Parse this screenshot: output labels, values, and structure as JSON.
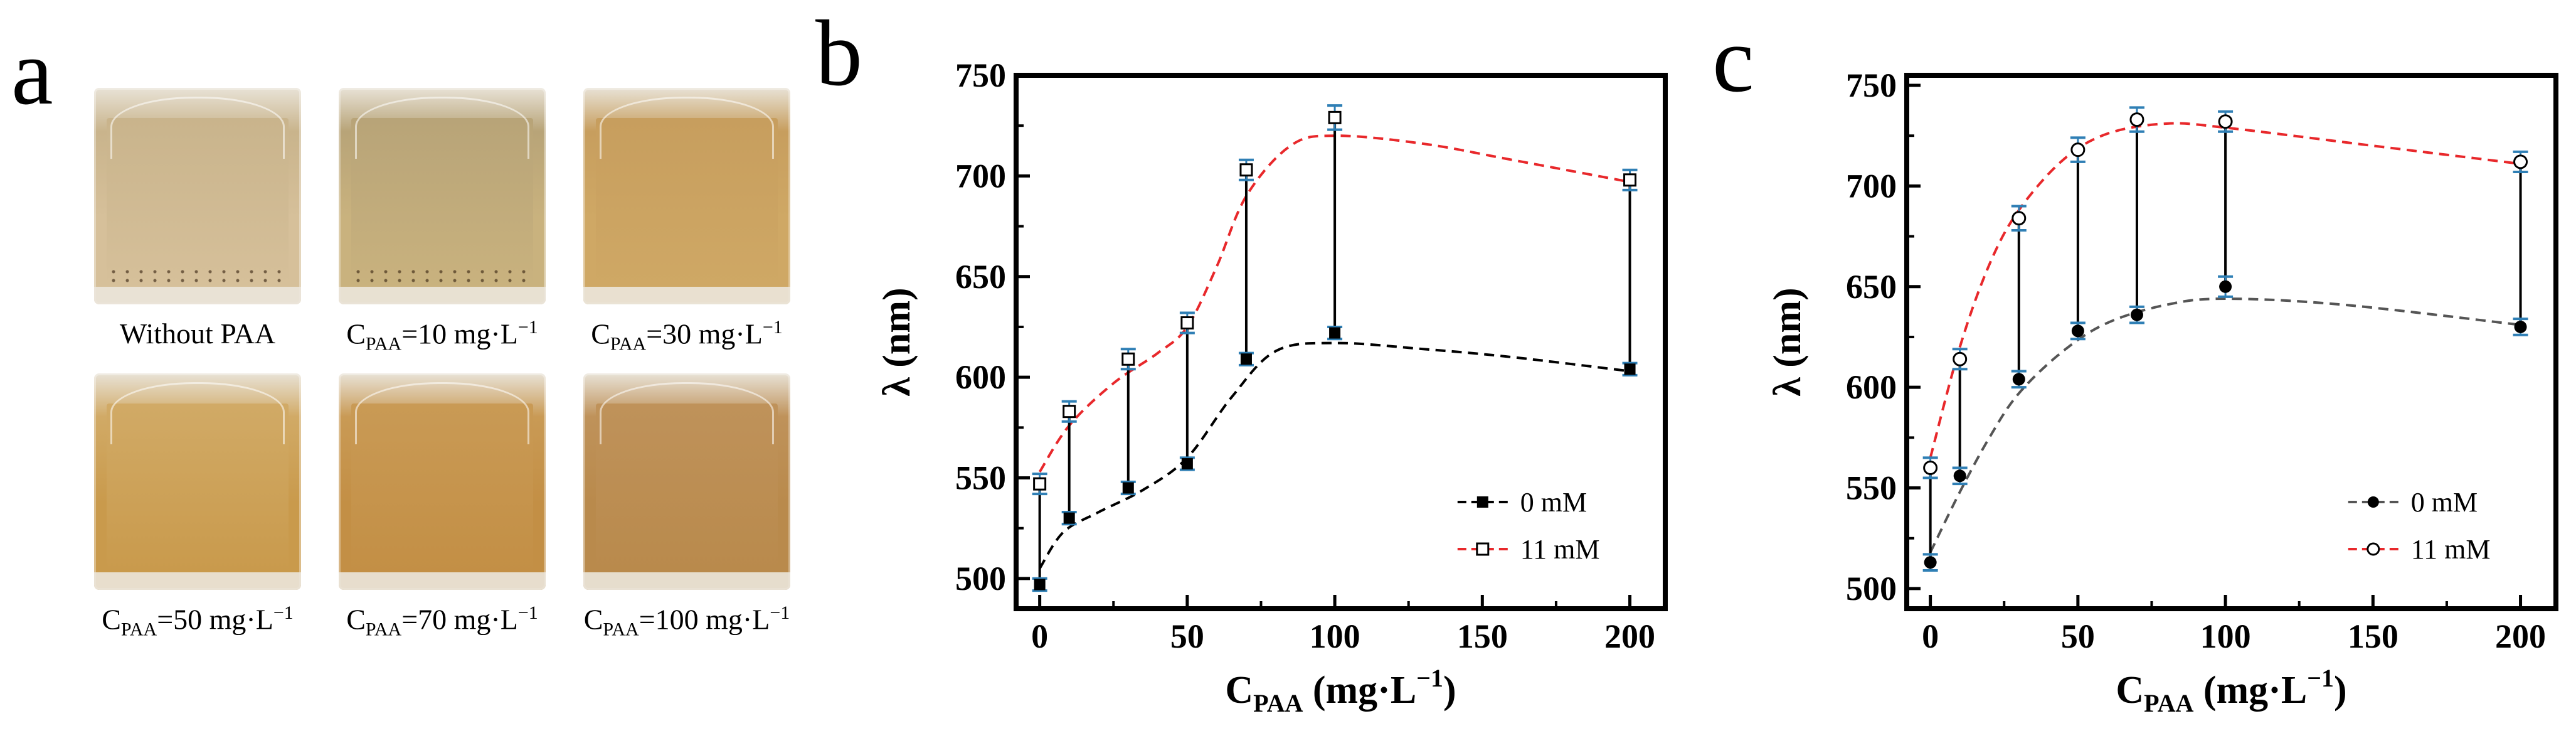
{
  "panels": {
    "a": "a",
    "b": "b",
    "c": "c"
  },
  "photos": [
    {
      "label": "Without PAA",
      "liquid_color": "#d6c09a",
      "top_color": "#c9b48c"
    },
    {
      "label_prefix": "C",
      "label_sub": "PAA",
      "label_value": "=10 mg·L",
      "label_sup": "−1",
      "liquid_color": "#c9b27e",
      "top_color": "#b8a478"
    },
    {
      "label_prefix": "C",
      "label_sub": "PAA",
      "label_value": "=30 mg·L",
      "label_sup": "−1",
      "liquid_color": "#cfa865",
      "top_color": "#c79e5e"
    },
    {
      "label_prefix": "C",
      "label_sub": "PAA",
      "label_value": "=50 mg·L",
      "label_sup": "−1",
      "liquid_color": "#c99a4c",
      "top_color": "#d1aa66"
    },
    {
      "label_prefix": "C",
      "label_sub": "PAA",
      "label_value": "=70 mg·L",
      "label_sup": "−1",
      "liquid_color": "#c38f45",
      "top_color": "#c99a55"
    },
    {
      "label_prefix": "C",
      "label_sub": "PAA",
      "label_value": "=100 mg·L",
      "label_sup": "−1",
      "liquid_color": "#b98a4c",
      "top_color": "#bf925a"
    }
  ],
  "chart_data": [
    {
      "type": "line",
      "panel": "b",
      "xlabel": "C",
      "xlabel_sub": "PAA",
      "xlabel_unit": " (mg·L",
      "xlabel_sup": "−1",
      "xlabel_close": ")",
      "ylabel": "λ (nm)",
      "xlim": [
        -8,
        212
      ],
      "ylim": [
        485,
        750
      ],
      "xticks": [
        0,
        50,
        100,
        150,
        200
      ],
      "yticks": [
        500,
        550,
        600,
        650,
        700,
        750
      ],
      "x": [
        0,
        10,
        30,
        50,
        70,
        100,
        200
      ],
      "series": [
        {
          "name": "0 mM",
          "marker": "filled-square",
          "line_color": "#000000",
          "values": [
            497,
            530,
            545,
            557,
            609,
            622,
            604
          ],
          "errors": [
            3,
            3,
            3,
            3,
            3,
            3,
            3
          ],
          "fit": [
            [
              0,
              505
            ],
            [
              8,
              523
            ],
            [
              20,
              533
            ],
            [
              35,
              544
            ],
            [
              50,
              560
            ],
            [
              65,
              590
            ],
            [
              80,
              613
            ],
            [
              100,
              617
            ],
            [
              130,
              614
            ],
            [
              160,
              610
            ],
            [
              200,
              603
            ]
          ]
        },
        {
          "name": "11 mM",
          "marker": "open-square",
          "line_color": "#e8282b",
          "values": [
            547,
            583,
            609,
            627,
            703,
            729,
            698
          ],
          "errors": [
            5,
            5,
            5,
            5,
            5,
            6,
            5
          ],
          "fit": [
            [
              0,
              553
            ],
            [
              10,
              576
            ],
            [
              25,
              597
            ],
            [
              40,
              612
            ],
            [
              50,
              625
            ],
            [
              60,
              655
            ],
            [
              70,
              690
            ],
            [
              85,
              715
            ],
            [
              100,
              720
            ],
            [
              130,
              716
            ],
            [
              160,
              708
            ],
            [
              200,
              697
            ]
          ]
        }
      ],
      "legend": "bottom-right"
    },
    {
      "type": "line",
      "panel": "c",
      "xlabel": "C",
      "xlabel_sub": "PAA",
      "xlabel_unit": " (mg·L",
      "xlabel_sup": "−1",
      "xlabel_close": ")",
      "ylabel": "λ (nm)",
      "xlim": [
        -8,
        212
      ],
      "ylim": [
        490,
        755
      ],
      "xticks": [
        0,
        50,
        100,
        150,
        200
      ],
      "yticks": [
        500,
        550,
        600,
        650,
        700,
        750
      ],
      "x": [
        0,
        10,
        30,
        50,
        70,
        100,
        200
      ],
      "series": [
        {
          "name": "0 mM",
          "marker": "filled-circle",
          "line_color": "#555555",
          "values": [
            513,
            556,
            604,
            628,
            636,
            650,
            630
          ],
          "errors": [
            4,
            4,
            4,
            4,
            4,
            5,
            4
          ],
          "fit": [
            [
              0,
              518
            ],
            [
              10,
              548
            ],
            [
              20,
              575
            ],
            [
              30,
              597
            ],
            [
              45,
              618
            ],
            [
              60,
              632
            ],
            [
              80,
              641
            ],
            [
              100,
              644
            ],
            [
              140,
              641
            ],
            [
              200,
              631
            ]
          ]
        },
        {
          "name": "11 mM",
          "marker": "open-circle",
          "line_color": "#e8282b",
          "values": [
            560,
            614,
            684,
            718,
            733,
            732,
            712
          ],
          "errors": [
            5,
            5,
            6,
            6,
            6,
            5,
            5
          ],
          "fit": [
            [
              0,
              565
            ],
            [
              10,
              620
            ],
            [
              20,
              661
            ],
            [
              30,
              688
            ],
            [
              45,
              713
            ],
            [
              60,
              726
            ],
            [
              80,
              731
            ],
            [
              100,
              729
            ],
            [
              150,
              720
            ],
            [
              200,
              711
            ]
          ]
        }
      ],
      "legend": "bottom-right"
    }
  ]
}
